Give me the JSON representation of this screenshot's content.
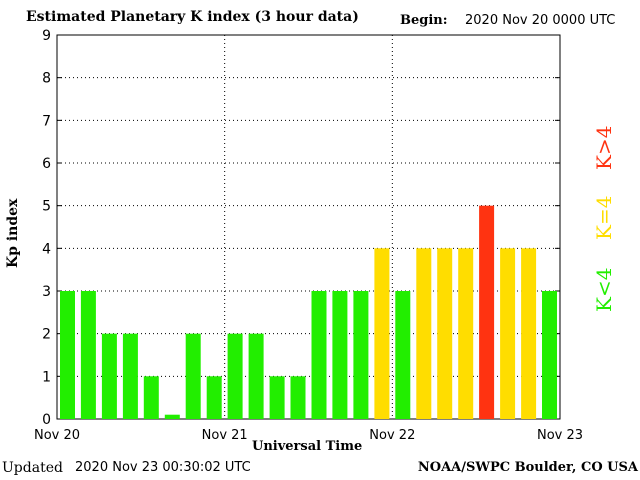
{
  "header": {
    "title": "Estimated Planetary K index (3 hour data)",
    "begin_label": "Begin:",
    "begin_value": "2020 Nov 20 0000 UTC"
  },
  "footer": {
    "updated_label": "Updated",
    "updated_value": "2020 Nov 23 00:30:02 UTC",
    "credit": "NOAA/SWPC Boulder, CO USA"
  },
  "legend": {
    "high": "K>4",
    "equal": "K=4",
    "low": "K<4"
  },
  "colors": {
    "low": "#22ee00",
    "equal": "#ffdd00",
    "high": "#ff3311"
  },
  "chart_data": {
    "type": "bar",
    "xlabel": "Universal Time",
    "ylabel": "Kp index",
    "ylim": [
      0,
      9
    ],
    "yticks": [
      0,
      1,
      2,
      3,
      4,
      5,
      6,
      7,
      8,
      9
    ],
    "xticks": [
      "Nov 20",
      "Nov 21",
      "Nov 22",
      "Nov 23"
    ],
    "grid": true,
    "values": [
      3,
      3,
      2,
      2,
      1,
      0.1,
      2,
      1,
      2,
      2,
      1,
      1,
      3,
      3,
      3,
      4,
      3,
      4,
      4,
      4,
      5,
      4,
      4,
      3
    ]
  }
}
